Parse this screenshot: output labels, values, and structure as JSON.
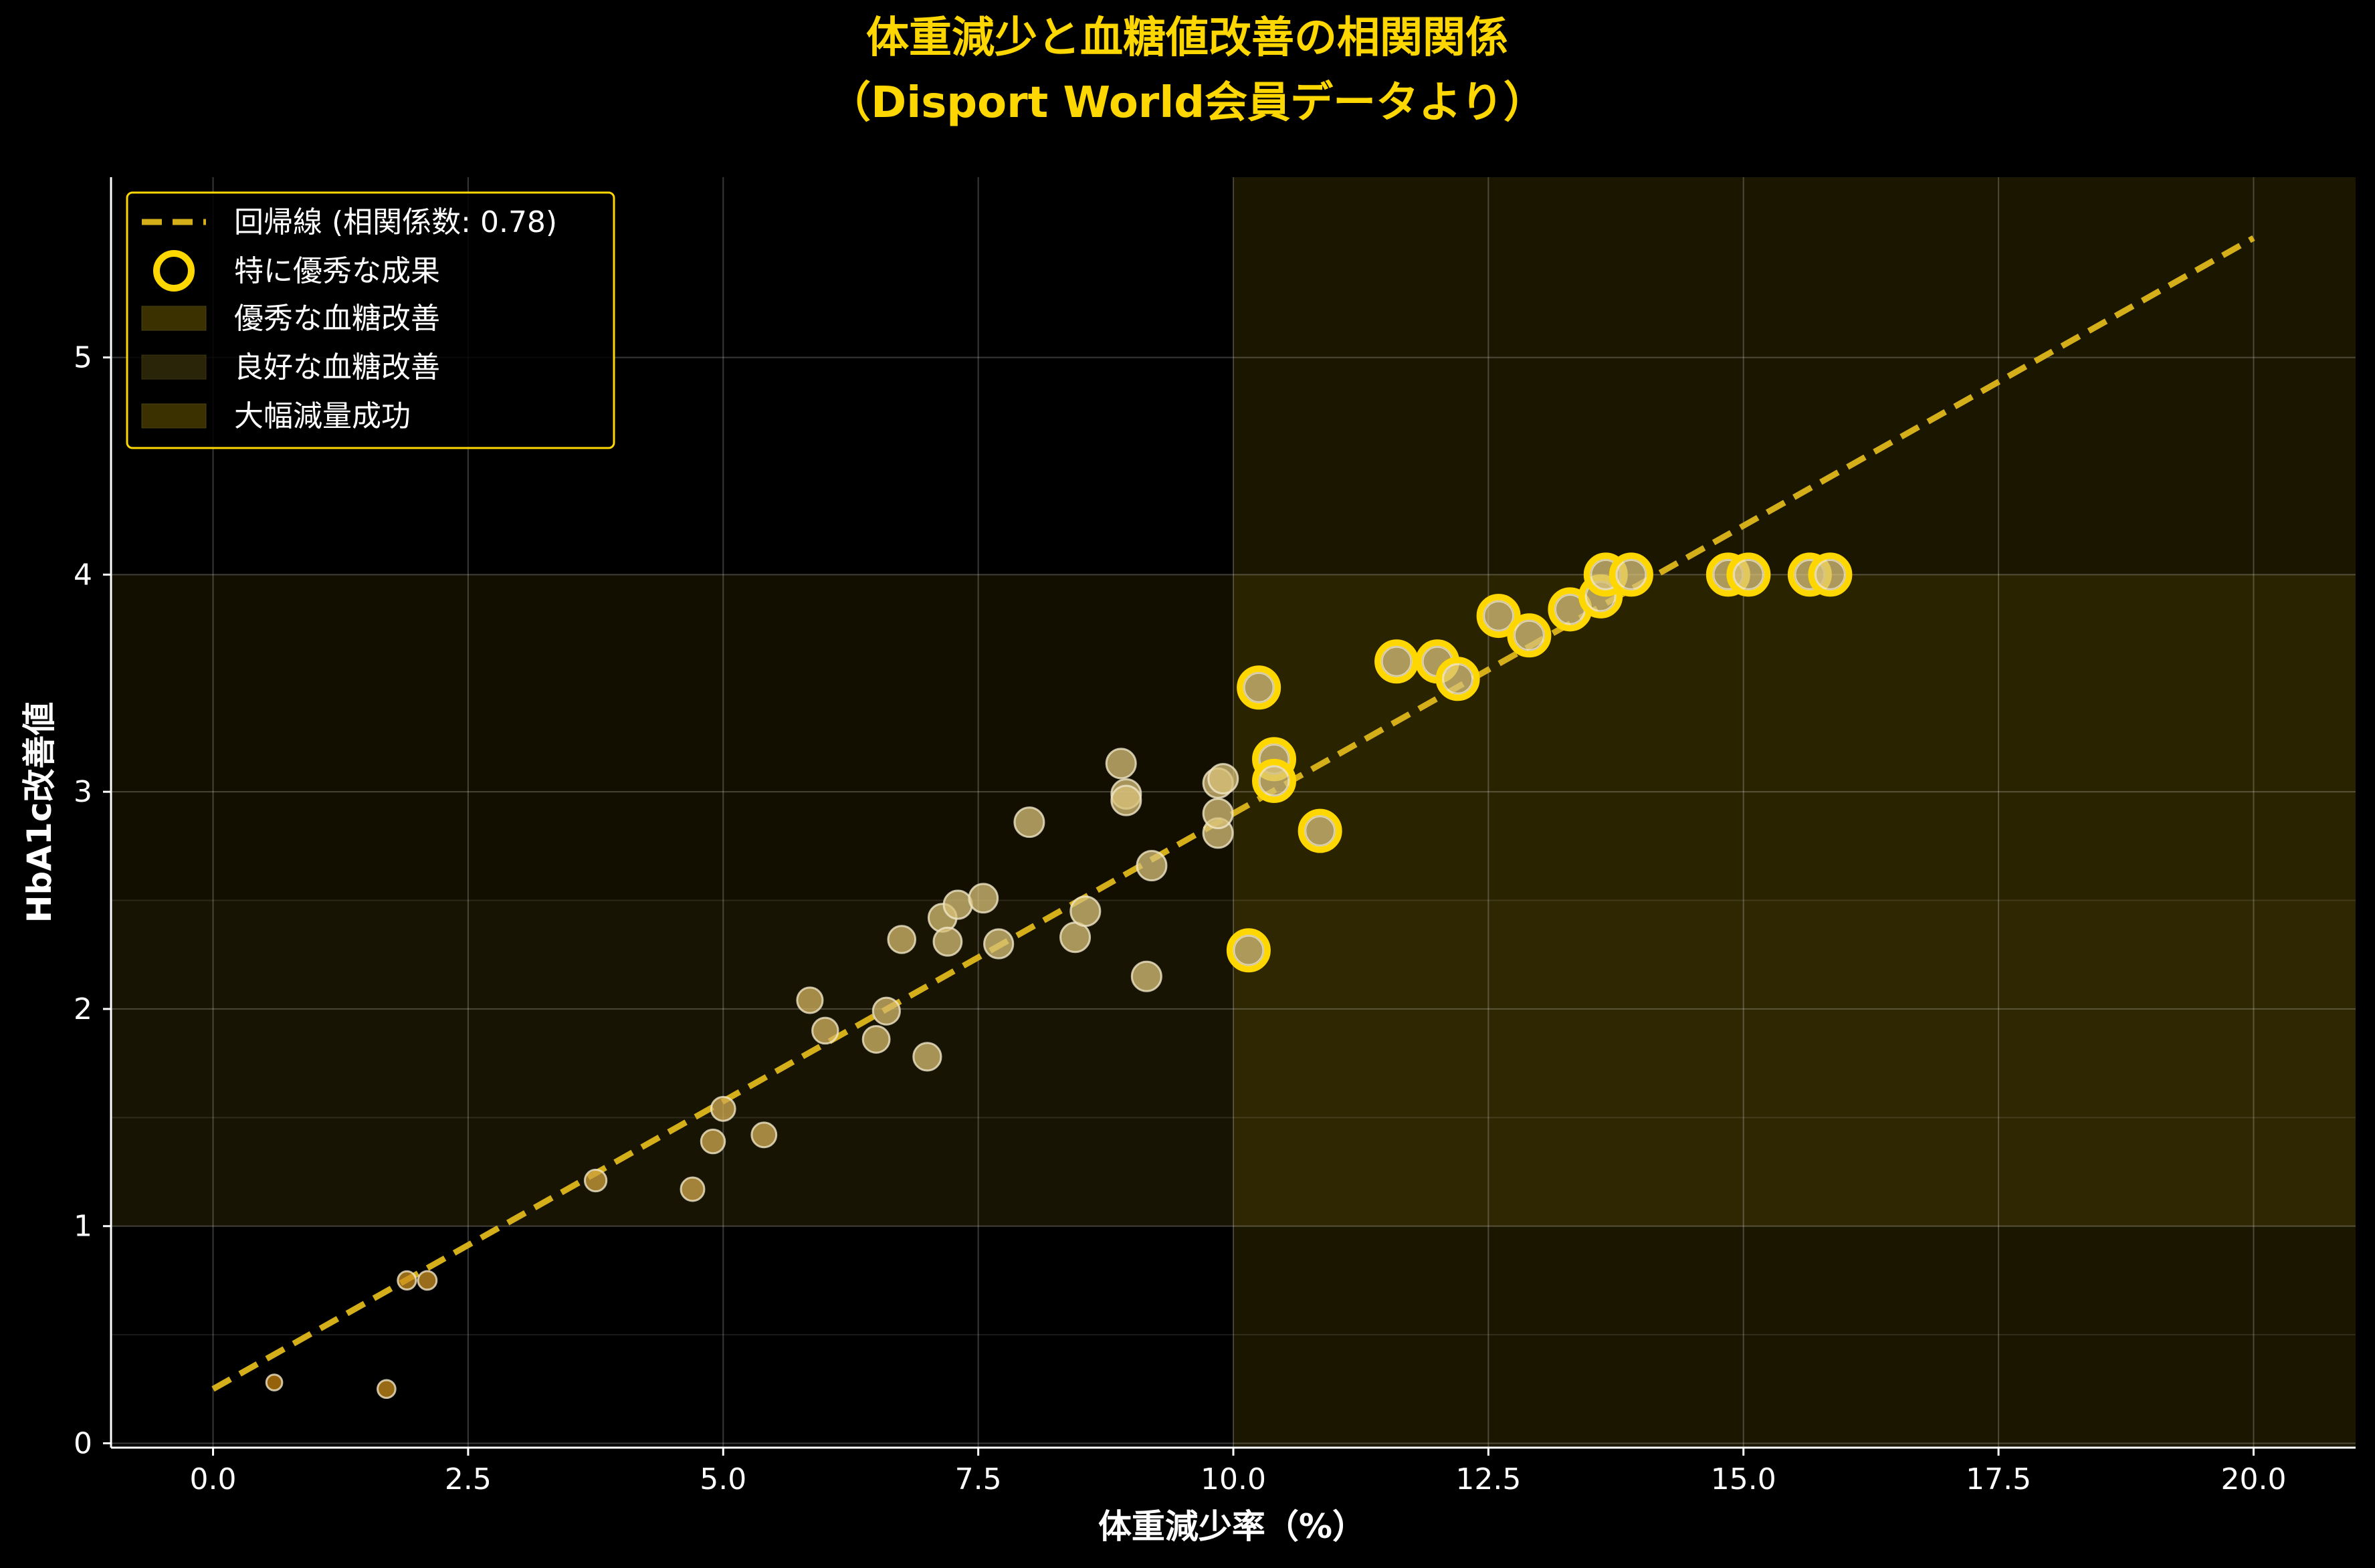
{
  "chart_data": {
    "type": "scatter",
    "title_lines": [
      "体重減少と血糖値改善の相関関係",
      "（Disport World会員データより）"
    ],
    "xlabel": "体重減少率（%）",
    "ylabel": "HbA1c改善値",
    "xlim": [
      -1.0,
      21.0
    ],
    "ylim": [
      -0.02,
      5.83
    ],
    "x_ticks": [
      0.0,
      2.5,
      5.0,
      7.5,
      10.0,
      12.5,
      15.0,
      17.5,
      20.0
    ],
    "x_tick_labels": [
      "0.0",
      "2.5",
      "5.0",
      "7.5",
      "10.0",
      "12.5",
      "15.0",
      "17.5",
      "20.0"
    ],
    "y_ticks": [
      0,
      1,
      2,
      3,
      4,
      5
    ],
    "y_tick_labels": [
      "0",
      "1",
      "2",
      "3",
      "4",
      "5"
    ],
    "y_minor_grid": [
      0.5,
      1.5,
      2.5
    ],
    "grid": true,
    "legend_position": "top-left",
    "regions": [
      {
        "name": "優秀な血糖改善",
        "y_from": 1.0,
        "y_to": 4.0,
        "color": "#FFD700",
        "alpha": 0.07
      },
      {
        "name": "良好な血糖改善",
        "y_from": 1.0,
        "y_to": 2.5,
        "color": "#B8A050",
        "alpha": 0.04
      },
      {
        "name": "大幅減量成功",
        "x_from": 10.0,
        "x_to": 21.0,
        "color": "#FFD700",
        "alpha": 0.1
      }
    ],
    "regression": {
      "name": "回帰線 (相関係数: 0.78)",
      "x": [
        0.0,
        20.0
      ],
      "y": [
        0.25,
        5.55
      ],
      "color": "#D4AF1A"
    },
    "highlight_name": "特に優秀な成果",
    "points": [
      {
        "x": 0.6,
        "y": 0.28
      },
      {
        "x": 1.7,
        "y": 0.25
      },
      {
        "x": 1.9,
        "y": 0.75
      },
      {
        "x": 2.1,
        "y": 0.75
      },
      {
        "x": 3.75,
        "y": 1.21
      },
      {
        "x": 4.7,
        "y": 1.17
      },
      {
        "x": 4.9,
        "y": 1.39
      },
      {
        "x": 5.0,
        "y": 1.54
      },
      {
        "x": 5.4,
        "y": 1.42
      },
      {
        "x": 5.85,
        "y": 2.04
      },
      {
        "x": 6.0,
        "y": 1.9
      },
      {
        "x": 6.5,
        "y": 1.86
      },
      {
        "x": 6.6,
        "y": 1.99
      },
      {
        "x": 6.75,
        "y": 2.32
      },
      {
        "x": 7.0,
        "y": 1.78
      },
      {
        "x": 7.15,
        "y": 2.42
      },
      {
        "x": 7.2,
        "y": 2.31
      },
      {
        "x": 7.3,
        "y": 2.48
      },
      {
        "x": 7.55,
        "y": 2.51
      },
      {
        "x": 7.7,
        "y": 2.3
      },
      {
        "x": 8.0,
        "y": 2.86
      },
      {
        "x": 8.45,
        "y": 2.33
      },
      {
        "x": 8.55,
        "y": 2.45
      },
      {
        "x": 8.9,
        "y": 3.13
      },
      {
        "x": 8.95,
        "y": 2.99
      },
      {
        "x": 8.95,
        "y": 2.96
      },
      {
        "x": 9.15,
        "y": 2.15
      },
      {
        "x": 9.2,
        "y": 2.66
      },
      {
        "x": 9.85,
        "y": 2.81
      },
      {
        "x": 9.85,
        "y": 2.9
      },
      {
        "x": 9.85,
        "y": 3.04
      },
      {
        "x": 9.9,
        "y": 3.06
      },
      {
        "x": 10.15,
        "y": 2.27,
        "highlight": true
      },
      {
        "x": 10.25,
        "y": 3.48,
        "highlight": true
      },
      {
        "x": 10.4,
        "y": 3.15,
        "highlight": true
      },
      {
        "x": 10.4,
        "y": 3.05,
        "highlight": true
      },
      {
        "x": 10.85,
        "y": 2.82,
        "highlight": true
      },
      {
        "x": 11.6,
        "y": 3.6,
        "highlight": true
      },
      {
        "x": 12.0,
        "y": 3.6,
        "highlight": true
      },
      {
        "x": 12.2,
        "y": 3.52,
        "highlight": true
      },
      {
        "x": 12.6,
        "y": 3.81,
        "highlight": true
      },
      {
        "x": 12.9,
        "y": 3.72,
        "highlight": true
      },
      {
        "x": 13.3,
        "y": 3.84,
        "highlight": true
      },
      {
        "x": 13.6,
        "y": 3.9,
        "highlight": true
      },
      {
        "x": 13.65,
        "y": 4.0,
        "highlight": true
      },
      {
        "x": 13.9,
        "y": 4.0,
        "highlight": true
      },
      {
        "x": 14.85,
        "y": 4.0,
        "highlight": true
      },
      {
        "x": 15.05,
        "y": 4.0,
        "highlight": true
      },
      {
        "x": 15.65,
        "y": 4.0,
        "highlight": true
      },
      {
        "x": 15.85,
        "y": 4.0,
        "highlight": true
      }
    ]
  },
  "colors": {
    "accent": "#FFD700",
    "regression": "#D4AF1A",
    "point_low": "#C8820A",
    "point_high": "#D8C27A",
    "grid": "#FFFFFF",
    "axis": "#FFFFFF"
  }
}
